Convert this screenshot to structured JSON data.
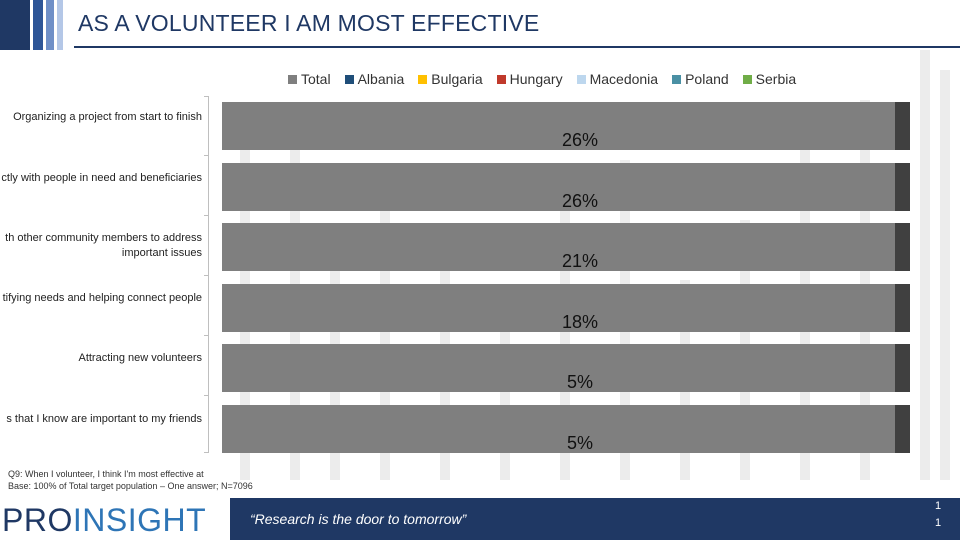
{
  "page": {
    "title": "AS A VOLUNTEER I AM MOST EFFECTIVE",
    "note_question": "Q9: When I volunteer, I think I'm most effective at",
    "note_base": "Base: 100% of Total target population – One answer; N=7096",
    "tagline": "“Research is the door to tomorrow”",
    "logo_part1": "PRO",
    "logo_part2": "INSIGHT",
    "page_number_1": "1",
    "page_number_2": "1"
  },
  "colors": {
    "title": "#1f3864",
    "total_bar": "#7f7f7f",
    "bar_end": "#404040",
    "footer": "#1f3864"
  },
  "chart_data": {
    "type": "bar",
    "orientation": "horizontal",
    "title": "AS A VOLUNTEER I AM MOST EFFECTIVE",
    "categories": [
      "Organizing a project from start to finish",
      "ctly with people in need and beneficiaries",
      "th other community members to address important issues",
      "tifying needs and helping connect people",
      "Attracting new volunteers",
      "s that I know are important to my friends"
    ],
    "legend": [
      {
        "name": "Total",
        "color": "#7f7f7f"
      },
      {
        "name": "Albania",
        "color": "#1f4e79"
      },
      {
        "name": "Bulgaria",
        "color": "#ffc000"
      },
      {
        "name": "Hungary",
        "color": "#c0392b"
      },
      {
        "name": "Macedonia",
        "color": "#bdd7ee"
      },
      {
        "name": "Poland",
        "color": "#4a90a4"
      },
      {
        "name": "Serbia",
        "color": "#70ad47"
      }
    ],
    "series": [
      {
        "name": "Total",
        "values": [
          26,
          26,
          21,
          18,
          5,
          5
        ]
      }
    ],
    "value_labels": [
      "26%",
      "26%",
      "21%",
      "18%",
      "5%",
      "5%"
    ],
    "xlabel": "",
    "ylabel": ""
  }
}
